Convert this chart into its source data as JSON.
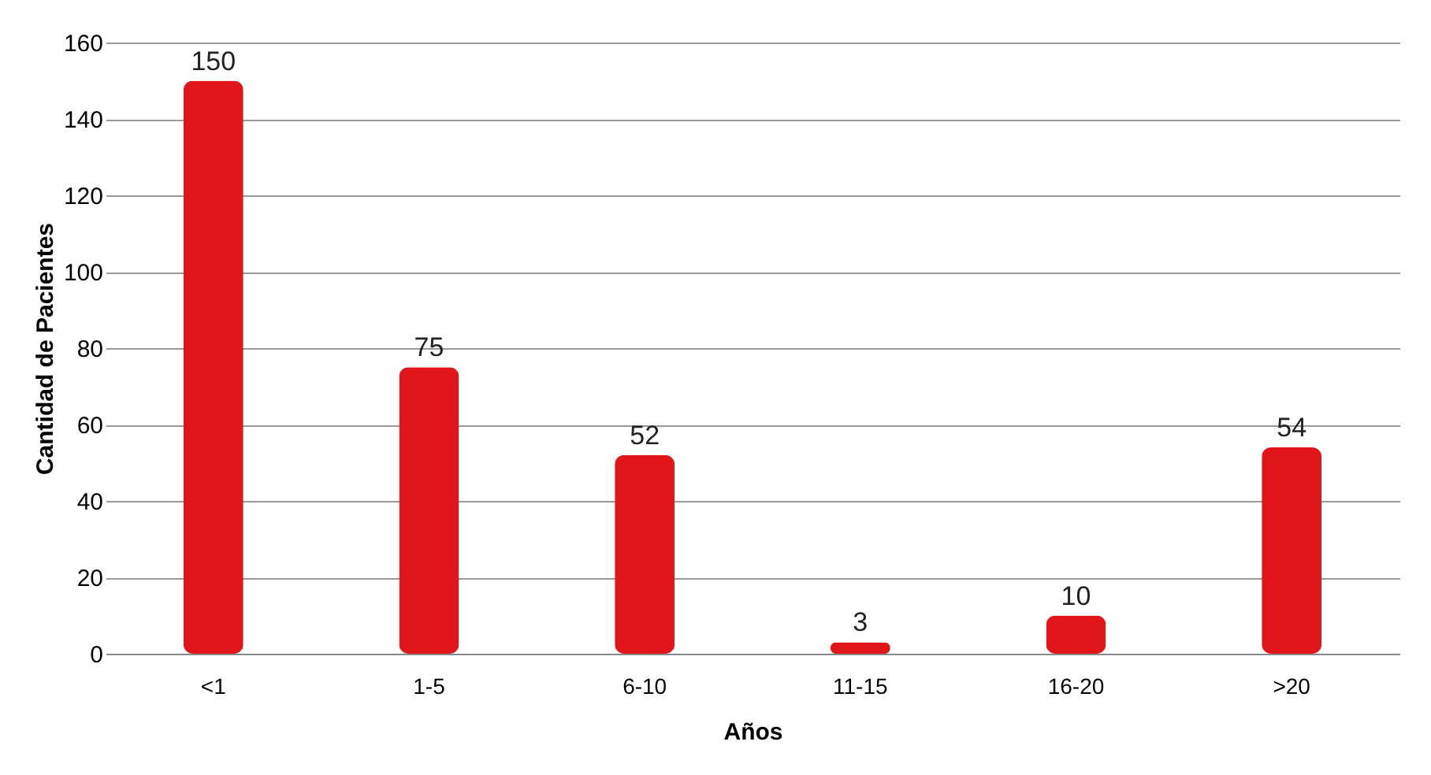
{
  "chart_data": {
    "type": "bar",
    "xlabel": "Años",
    "ylabel": "Cantidad de Pacientes",
    "categories": [
      "<1",
      "1-5",
      "6-10",
      "11-15",
      "16-20",
      ">20"
    ],
    "values": [
      150,
      75,
      52,
      3,
      10,
      54
    ],
    "color": "#e0161b",
    "ylim": [
      0,
      160
    ],
    "yticks": [
      0,
      20,
      40,
      60,
      80,
      100,
      120,
      140,
      160
    ],
    "grid": "y",
    "data_labels": true
  }
}
